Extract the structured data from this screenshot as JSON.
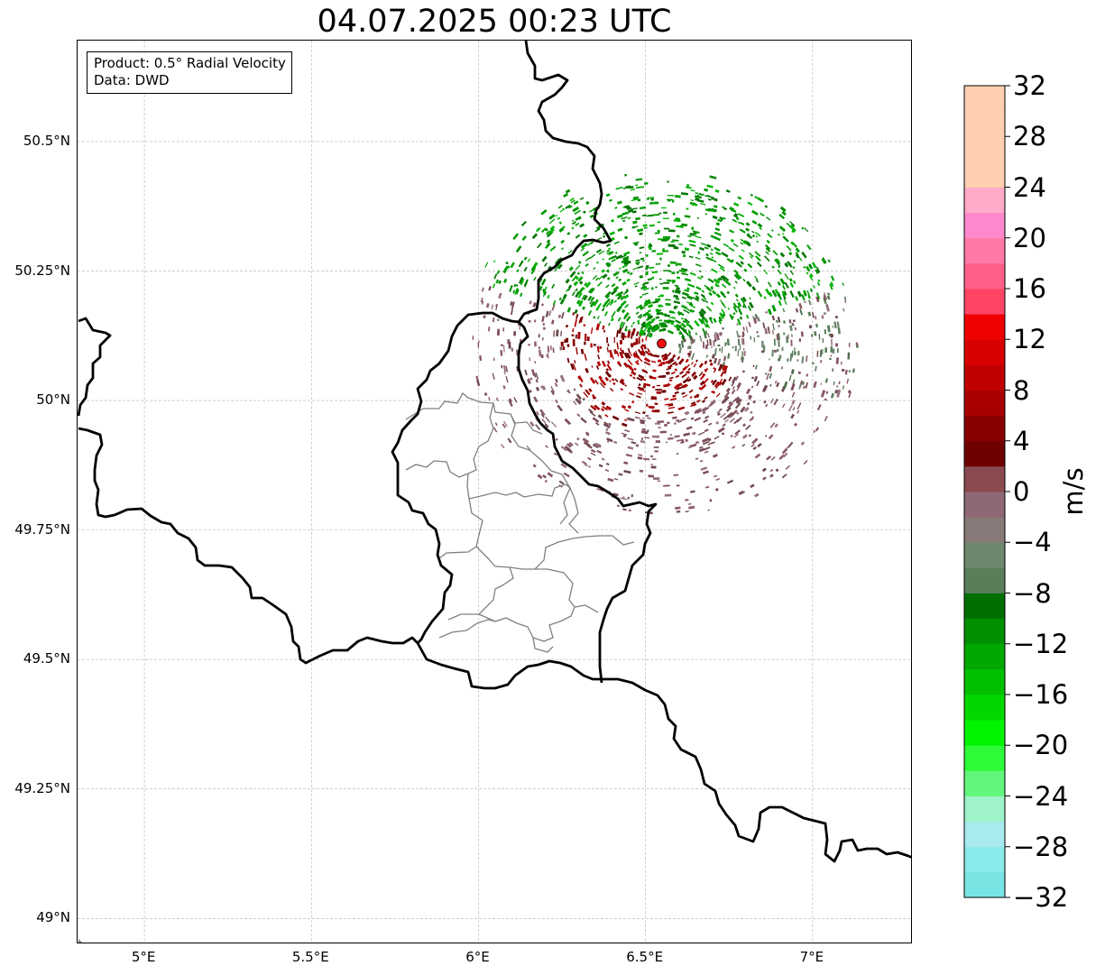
{
  "title": "04.07.2025 00:23 UTC",
  "info_box": {
    "line1": "Product: 0.5° Radial Velocity",
    "line2": "Data: DWD"
  },
  "map": {
    "lon_range": [
      4.8,
      7.3
    ],
    "lat_range": [
      48.95,
      50.695
    ],
    "radar_site": {
      "lon": 6.548,
      "lat": 50.11
    },
    "lat_gridlines": [
      {
        "value": 49.0,
        "label": "49°N"
      },
      {
        "value": 49.25,
        "label": "49.25°N"
      },
      {
        "value": 49.5,
        "label": "49.5°N"
      },
      {
        "value": 49.75,
        "label": "49.75°N"
      },
      {
        "value": 50.0,
        "label": "50°N"
      },
      {
        "value": 50.25,
        "label": "50.25°N"
      },
      {
        "value": 50.5,
        "label": "50.5°N"
      }
    ],
    "lon_gridlines": [
      {
        "value": 5.0,
        "label": "5°E"
      },
      {
        "value": 5.5,
        "label": "5.5°E"
      },
      {
        "value": 6.0,
        "label": "6°E"
      },
      {
        "value": 6.5,
        "label": "6.5°E"
      },
      {
        "value": 7.0,
        "label": "7°E"
      }
    ],
    "colors": {
      "border": "#000000",
      "region_border": "#808080",
      "grid": "#b0b0b0",
      "radar_site": "#ee1111"
    }
  },
  "colorbar": {
    "unit": "m/s",
    "min": -32,
    "max": 32,
    "step": 2,
    "tick_labels": [
      "−32",
      "−28",
      "−24",
      "−20",
      "−16",
      "−12",
      "−8",
      "−4",
      "0",
      "4",
      "8",
      "12",
      "16",
      "20",
      "24",
      "28",
      "32"
    ],
    "tick_values": [
      -32,
      -28,
      -24,
      -20,
      -16,
      -12,
      -8,
      -4,
      0,
      4,
      8,
      12,
      16,
      20,
      24,
      28,
      32
    ],
    "colors": [
      "#78e4e4",
      "#8ae9ea",
      "#a8eaee",
      "#9ef3c9",
      "#63f67c",
      "#2efc38",
      "#00f300",
      "#00d800",
      "#00c000",
      "#00a800",
      "#009000",
      "#006e00",
      "#5a7e5a",
      "#6e886e",
      "#887a78",
      "#8e6874",
      "#8a4a50",
      "#6e0000",
      "#8a0000",
      "#a80000",
      "#c00000",
      "#d80000",
      "#f00000",
      "#ff4466",
      "#ff6088",
      "#ff78a8",
      "#ff88cc",
      "#ffaac8",
      "#ffcfb0",
      "#ffcfb0",
      "#ffcfb0",
      "#ffcfb0"
    ]
  }
}
